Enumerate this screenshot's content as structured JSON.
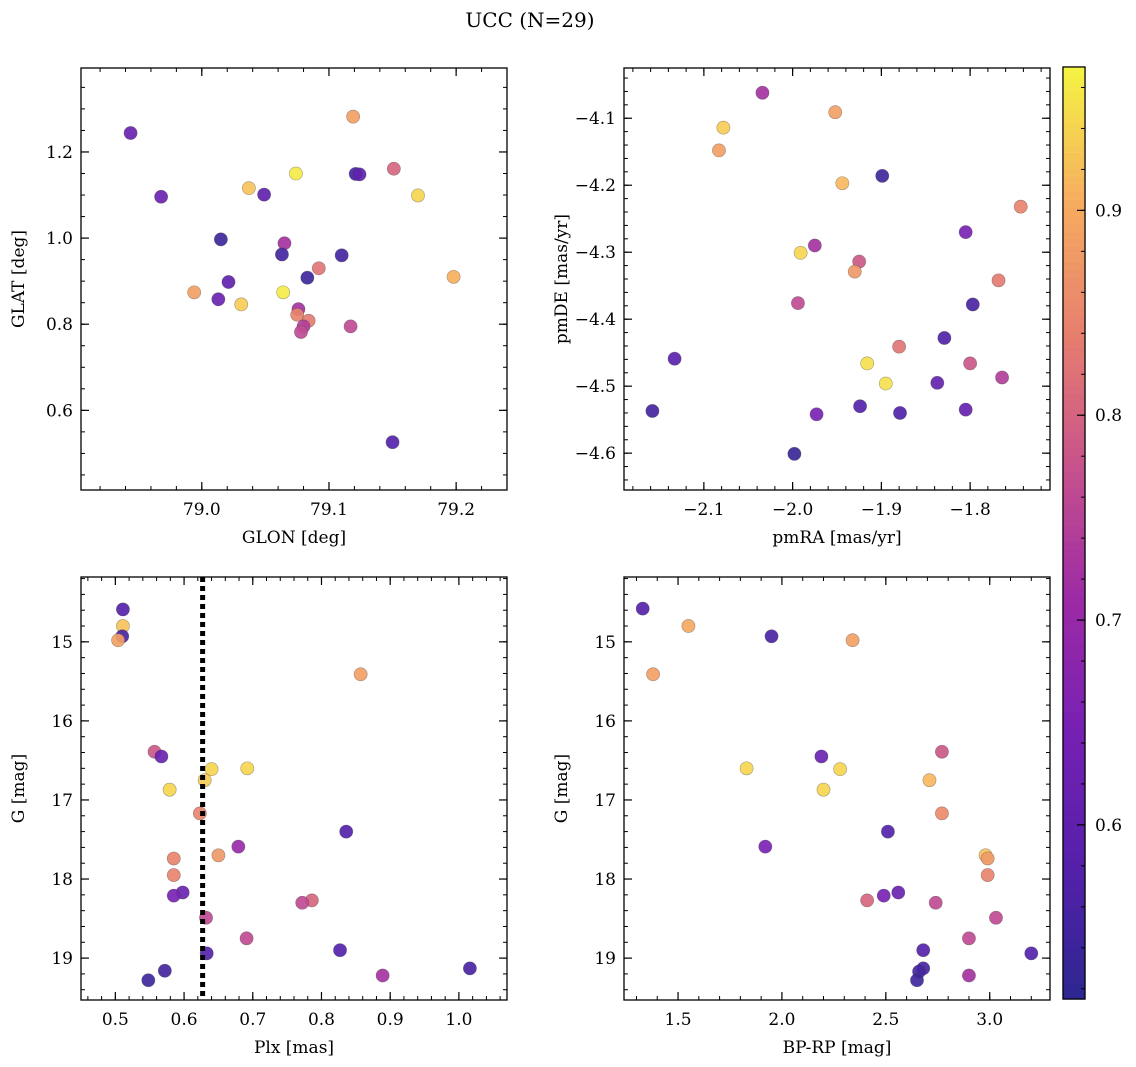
{
  "figure": {
    "title": "UCC (N=29)"
  },
  "colorbar": {
    "cmap": "plasma",
    "range": [
      0.515,
      0.97
    ],
    "ticks": [
      0.6,
      0.7,
      0.8,
      0.9
    ],
    "tick_labels": [
      "0.6",
      "0.7",
      "0.8",
      "0.9"
    ]
  },
  "chart_data": [
    {
      "id": "glon-glat",
      "type": "scatter",
      "xlabel": "GLON [deg]",
      "ylabel": "GLAT [deg]",
      "xlim": [
        78.905,
        79.24
      ],
      "ylim": [
        0.415,
        1.395
      ],
      "xticks": [
        79.0,
        79.1,
        79.2
      ],
      "xtick_labels": [
        "79.0",
        "79.1",
        "79.2"
      ],
      "yticks": [
        0.6,
        0.8,
        1.0,
        1.2
      ],
      "ytick_labels": [
        "0.6",
        "0.8",
        "1.0",
        "1.2"
      ],
      "xminor": 0.02,
      "yminor": 0.05,
      "points": [
        {
          "x": 78.944,
          "y": 1.244,
          "c": 0.62
        },
        {
          "x": 78.968,
          "y": 1.096,
          "c": 0.62
        },
        {
          "x": 79.119,
          "y": 1.282,
          "c": 0.88
        },
        {
          "x": 79.037,
          "y": 1.116,
          "c": 0.92
        },
        {
          "x": 79.049,
          "y": 1.101,
          "c": 0.6
        },
        {
          "x": 79.074,
          "y": 1.15,
          "c": 0.96
        },
        {
          "x": 79.121,
          "y": 1.149,
          "c": 0.55
        },
        {
          "x": 79.124,
          "y": 1.148,
          "c": 0.6
        },
        {
          "x": 79.151,
          "y": 1.161,
          "c": 0.8
        },
        {
          "x": 79.17,
          "y": 1.099,
          "c": 0.94
        },
        {
          "x": 79.015,
          "y": 0.997,
          "c": 0.54
        },
        {
          "x": 79.065,
          "y": 0.988,
          "c": 0.72
        },
        {
          "x": 79.063,
          "y": 0.962,
          "c": 0.55
        },
        {
          "x": 79.11,
          "y": 0.96,
          "c": 0.55
        },
        {
          "x": 79.092,
          "y": 0.93,
          "c": 0.82
        },
        {
          "x": 79.083,
          "y": 0.908,
          "c": 0.54
        },
        {
          "x": 79.198,
          "y": 0.91,
          "c": 0.9
        },
        {
          "x": 78.994,
          "y": 0.874,
          "c": 0.88
        },
        {
          "x": 79.021,
          "y": 0.898,
          "c": 0.6
        },
        {
          "x": 79.064,
          "y": 0.874,
          "c": 0.96
        },
        {
          "x": 79.013,
          "y": 0.858,
          "c": 0.62
        },
        {
          "x": 79.031,
          "y": 0.846,
          "c": 0.93
        },
        {
          "x": 79.076,
          "y": 0.835,
          "c": 0.72
        },
        {
          "x": 79.075,
          "y": 0.822,
          "c": 0.84
        },
        {
          "x": 79.084,
          "y": 0.808,
          "c": 0.83
        },
        {
          "x": 79.08,
          "y": 0.795,
          "c": 0.74
        },
        {
          "x": 79.078,
          "y": 0.782,
          "c": 0.76
        },
        {
          "x": 79.117,
          "y": 0.795,
          "c": 0.76
        },
        {
          "x": 79.15,
          "y": 0.526,
          "c": 0.58
        }
      ]
    },
    {
      "id": "pmra-pmde",
      "type": "scatter",
      "xlabel": "pmRA [mas/yr]",
      "ylabel": "pmDE [mas/yr]",
      "xlim": [
        -2.19,
        -1.71
      ],
      "ylim": [
        -4.655,
        -4.025
      ],
      "xticks": [
        -2.1,
        -2.0,
        -1.9,
        -1.8
      ],
      "xtick_labels": [
        "−2.1",
        "−2.0",
        "−1.9",
        "−1.8"
      ],
      "yticks": [
        -4.6,
        -4.5,
        -4.4,
        -4.3,
        -4.2,
        -4.1
      ],
      "ytick_labels": [
        "−4.6",
        "−4.5",
        "−4.4",
        "−4.3",
        "−4.2",
        "−4.1"
      ],
      "xminor": 0.02,
      "yminor": 0.02,
      "points": [
        {
          "x": -2.034,
          "y": -4.062,
          "c": 0.72
        },
        {
          "x": -2.078,
          "y": -4.114,
          "c": 0.93
        },
        {
          "x": -2.083,
          "y": -4.148,
          "c": 0.88
        },
        {
          "x": -1.952,
          "y": -4.091,
          "c": 0.88
        },
        {
          "x": -1.944,
          "y": -4.197,
          "c": 0.91
        },
        {
          "x": -1.899,
          "y": -4.186,
          "c": 0.54
        },
        {
          "x": -1.743,
          "y": -4.232,
          "c": 0.84
        },
        {
          "x": -1.805,
          "y": -4.27,
          "c": 0.65
        },
        {
          "x": -1.975,
          "y": -4.29,
          "c": 0.72
        },
        {
          "x": -1.991,
          "y": -4.301,
          "c": 0.94
        },
        {
          "x": -1.925,
          "y": -4.314,
          "c": 0.78
        },
        {
          "x": -1.93,
          "y": -4.329,
          "c": 0.87
        },
        {
          "x": -1.768,
          "y": -4.342,
          "c": 0.83
        },
        {
          "x": -1.994,
          "y": -4.376,
          "c": 0.76
        },
        {
          "x": -1.797,
          "y": -4.378,
          "c": 0.56
        },
        {
          "x": -1.829,
          "y": -4.428,
          "c": 0.57
        },
        {
          "x": -1.88,
          "y": -4.441,
          "c": 0.82
        },
        {
          "x": -2.133,
          "y": -4.459,
          "c": 0.59
        },
        {
          "x": -1.916,
          "y": -4.466,
          "c": 0.95
        },
        {
          "x": -1.8,
          "y": -4.466,
          "c": 0.78
        },
        {
          "x": -1.764,
          "y": -4.487,
          "c": 0.74
        },
        {
          "x": -1.837,
          "y": -4.495,
          "c": 0.61
        },
        {
          "x": -1.895,
          "y": -4.496,
          "c": 0.95
        },
        {
          "x": -1.924,
          "y": -4.53,
          "c": 0.58
        },
        {
          "x": -2.158,
          "y": -4.537,
          "c": 0.55
        },
        {
          "x": -1.879,
          "y": -4.54,
          "c": 0.57
        },
        {
          "x": -1.973,
          "y": -4.542,
          "c": 0.65
        },
        {
          "x": -1.805,
          "y": -4.535,
          "c": 0.61
        },
        {
          "x": -1.998,
          "y": -4.601,
          "c": 0.53
        }
      ]
    },
    {
      "id": "plx-g",
      "type": "scatter",
      "xlabel": "Plx [mas]",
      "ylabel": "G [mag]",
      "xlim": [
        0.45,
        1.07
      ],
      "ylim": [
        19.53,
        14.18
      ],
      "inverted_y": true,
      "vline": 0.627,
      "xticks": [
        0.5,
        0.6,
        0.7,
        0.8,
        0.9,
        1.0
      ],
      "xtick_labels": [
        "0.5",
        "0.6",
        "0.7",
        "0.8",
        "0.9",
        "1.0"
      ],
      "yticks": [
        15,
        16,
        17,
        18,
        19
      ],
      "ytick_labels": [
        "15",
        "16",
        "17",
        "18",
        "19"
      ],
      "xminor": 0.02,
      "yminor": 0.2,
      "points": [
        {
          "x": 0.511,
          "y": 14.59,
          "c": 0.58
        },
        {
          "x": 0.511,
          "y": 14.8,
          "c": 0.92
        },
        {
          "x": 0.51,
          "y": 14.93,
          "c": 0.56
        },
        {
          "x": 0.504,
          "y": 14.98,
          "c": 0.88
        },
        {
          "x": 0.857,
          "y": 15.41,
          "c": 0.88
        },
        {
          "x": 0.557,
          "y": 16.39,
          "c": 0.78
        },
        {
          "x": 0.567,
          "y": 16.45,
          "c": 0.62
        },
        {
          "x": 0.64,
          "y": 16.61,
          "c": 0.94
        },
        {
          "x": 0.692,
          "y": 16.6,
          "c": 0.94
        },
        {
          "x": 0.63,
          "y": 16.75,
          "c": 0.93
        },
        {
          "x": 0.579,
          "y": 16.87,
          "c": 0.94
        },
        {
          "x": 0.623,
          "y": 17.17,
          "c": 0.84
        },
        {
          "x": 0.836,
          "y": 17.4,
          "c": 0.58
        },
        {
          "x": 0.679,
          "y": 17.59,
          "c": 0.7
        },
        {
          "x": 0.65,
          "y": 17.7,
          "c": 0.87
        },
        {
          "x": 0.585,
          "y": 17.74,
          "c": 0.84
        },
        {
          "x": 0.585,
          "y": 17.95,
          "c": 0.84
        },
        {
          "x": 0.598,
          "y": 18.17,
          "c": 0.62
        },
        {
          "x": 0.585,
          "y": 18.21,
          "c": 0.65
        },
        {
          "x": 0.786,
          "y": 18.27,
          "c": 0.8
        },
        {
          "x": 0.772,
          "y": 18.3,
          "c": 0.76
        },
        {
          "x": 0.632,
          "y": 18.49,
          "c": 0.76
        },
        {
          "x": 0.691,
          "y": 18.75,
          "c": 0.76
        },
        {
          "x": 0.827,
          "y": 18.9,
          "c": 0.58
        },
        {
          "x": 0.633,
          "y": 18.94,
          "c": 0.58
        },
        {
          "x": 1.016,
          "y": 19.13,
          "c": 0.56
        },
        {
          "x": 0.572,
          "y": 19.16,
          "c": 0.55
        },
        {
          "x": 0.889,
          "y": 19.22,
          "c": 0.72
        },
        {
          "x": 0.548,
          "y": 19.28,
          "c": 0.54
        }
      ]
    },
    {
      "id": "bprp-g",
      "type": "scatter",
      "xlabel": "BP-RP [mag]",
      "ylabel": "G [mag]",
      "xlim": [
        1.24,
        3.29
      ],
      "ylim": [
        19.53,
        14.18
      ],
      "inverted_y": true,
      "xticks": [
        1.5,
        2.0,
        2.5,
        3.0
      ],
      "xtick_labels": [
        "1.5",
        "2.0",
        "2.5",
        "3.0"
      ],
      "yticks": [
        15,
        16,
        17,
        18,
        19
      ],
      "ytick_labels": [
        "15",
        "16",
        "17",
        "18",
        "19"
      ],
      "xminor": 0.1,
      "yminor": 0.2,
      "points": [
        {
          "x": 1.33,
          "y": 14.58,
          "c": 0.58
        },
        {
          "x": 1.55,
          "y": 14.8,
          "c": 0.89
        },
        {
          "x": 1.95,
          "y": 14.93,
          "c": 0.56
        },
        {
          "x": 2.34,
          "y": 14.98,
          "c": 0.88
        },
        {
          "x": 1.38,
          "y": 15.41,
          "c": 0.88
        },
        {
          "x": 2.77,
          "y": 16.39,
          "c": 0.78
        },
        {
          "x": 2.19,
          "y": 16.45,
          "c": 0.62
        },
        {
          "x": 1.83,
          "y": 16.6,
          "c": 0.94
        },
        {
          "x": 2.28,
          "y": 16.61,
          "c": 0.94
        },
        {
          "x": 2.71,
          "y": 16.75,
          "c": 0.91
        },
        {
          "x": 2.2,
          "y": 16.87,
          "c": 0.94
        },
        {
          "x": 2.77,
          "y": 17.17,
          "c": 0.85
        },
        {
          "x": 2.51,
          "y": 17.4,
          "c": 0.58
        },
        {
          "x": 1.92,
          "y": 17.59,
          "c": 0.65
        },
        {
          "x": 2.98,
          "y": 17.7,
          "c": 0.92
        },
        {
          "x": 2.99,
          "y": 17.74,
          "c": 0.87
        },
        {
          "x": 2.99,
          "y": 17.95,
          "c": 0.84
        },
        {
          "x": 2.56,
          "y": 18.17,
          "c": 0.62
        },
        {
          "x": 2.49,
          "y": 18.21,
          "c": 0.65
        },
        {
          "x": 2.41,
          "y": 18.27,
          "c": 0.8
        },
        {
          "x": 2.74,
          "y": 18.3,
          "c": 0.76
        },
        {
          "x": 3.03,
          "y": 18.49,
          "c": 0.76
        },
        {
          "x": 2.9,
          "y": 18.75,
          "c": 0.76
        },
        {
          "x": 2.68,
          "y": 18.9,
          "c": 0.58
        },
        {
          "x": 3.2,
          "y": 18.94,
          "c": 0.58
        },
        {
          "x": 2.68,
          "y": 19.13,
          "c": 0.56
        },
        {
          "x": 2.66,
          "y": 19.17,
          "c": 0.55
        },
        {
          "x": 2.9,
          "y": 19.22,
          "c": 0.72
        },
        {
          "x": 2.65,
          "y": 19.28,
          "c": 0.54
        }
      ]
    }
  ]
}
